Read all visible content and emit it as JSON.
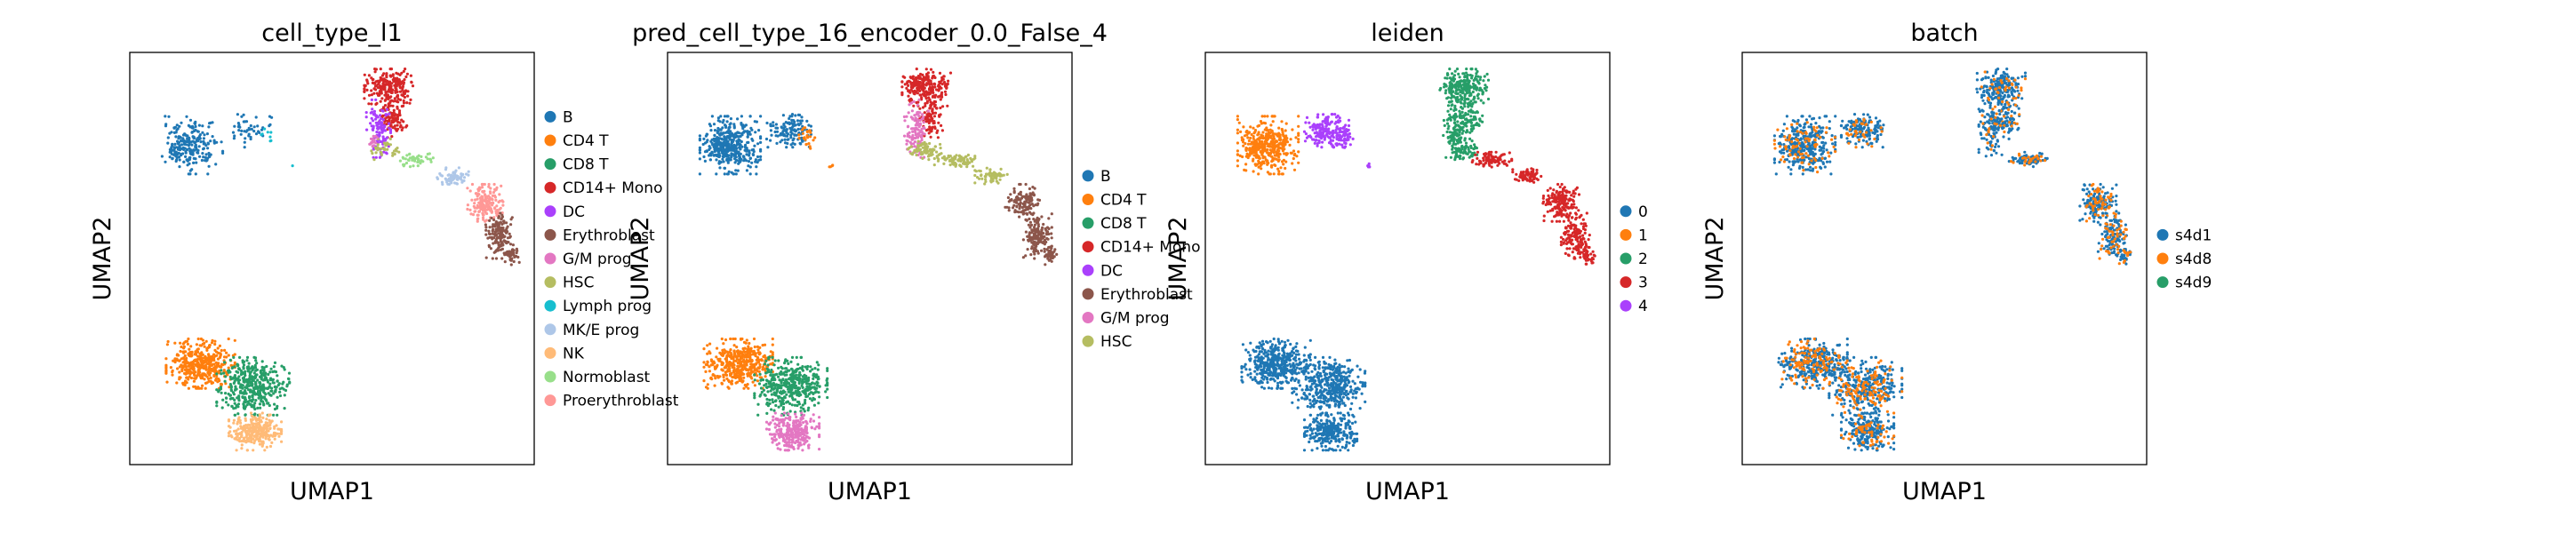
{
  "chart_data": [
    {
      "type": "scatter",
      "title": "cell_type_l1",
      "xlabel": "UMAP1",
      "ylabel": "UMAP2",
      "grid": false,
      "legend": {
        "placement": "right",
        "entries": [
          {
            "label": "B",
            "color": "#1f77b4"
          },
          {
            "label": "CD4 T",
            "color": "#ff7f0e"
          },
          {
            "label": "CD8 T",
            "color": "#279e68"
          },
          {
            "label": "CD14+ Mono",
            "color": "#d62728"
          },
          {
            "label": "DC",
            "color": "#aa40fc"
          },
          {
            "label": "Erythroblast",
            "color": "#8c564b"
          },
          {
            "label": "G/M prog",
            "color": "#e377c2"
          },
          {
            "label": "HSC",
            "color": "#b5bd61"
          },
          {
            "label": "Lymph prog",
            "color": "#17becf"
          },
          {
            "label": "MK/E prog",
            "color": "#aec7e8"
          },
          {
            "label": "NK",
            "color": "#ffbb78"
          },
          {
            "label": "Normoblast",
            "color": "#98df8a"
          },
          {
            "label": "Proerythroblast",
            "color": "#ff9896"
          }
        ]
      },
      "groups": [
        {
          "label": "B",
          "region": "b_left",
          "share": 0.55
        },
        {
          "label": "B",
          "region": "b_right",
          "share": 0.25
        },
        {
          "label": "Lymph prog",
          "region": "b_right_edge",
          "share": 0.2
        },
        {
          "label": "CD14+ Mono",
          "region": "mono_top",
          "share": 1.0
        },
        {
          "label": "DC",
          "region": "dc_stem",
          "share": 1.0
        },
        {
          "label": "HSC",
          "region": "hsc_bridge",
          "share": 0.5
        },
        {
          "label": "Normoblast",
          "region": "bridge",
          "share": 0.5
        },
        {
          "label": "MK/E prog",
          "region": "bridge_right",
          "share": 1.0
        },
        {
          "label": "Proerythroblast",
          "region": "ery_upper",
          "share": 1.0
        },
        {
          "label": "Erythroblast",
          "region": "ery_lower",
          "share": 1.0
        },
        {
          "label": "G/M prog",
          "region": "gm_spot",
          "share": 1.0
        },
        {
          "label": "CD4 T",
          "region": "t_left",
          "share": 1.0
        },
        {
          "label": "CD8 T",
          "region": "t_right",
          "share": 1.0
        },
        {
          "label": "NK",
          "region": "t_bottom",
          "share": 1.0
        }
      ]
    },
    {
      "type": "scatter",
      "title": "pred_cell_type_16_encoder_0.0_False_4",
      "xlabel": "UMAP1",
      "ylabel": "UMAP2",
      "grid": false,
      "legend": {
        "placement": "right",
        "entries": [
          {
            "label": "B",
            "color": "#1f77b4"
          },
          {
            "label": "CD4 T",
            "color": "#ff7f0e"
          },
          {
            "label": "CD8 T",
            "color": "#279e68"
          },
          {
            "label": "CD14+ Mono",
            "color": "#d62728"
          },
          {
            "label": "DC",
            "color": "#aa40fc"
          },
          {
            "label": "Erythroblast",
            "color": "#8c564b"
          },
          {
            "label": "G/M prog",
            "color": "#e377c2"
          },
          {
            "label": "HSC",
            "color": "#b5bd61"
          }
        ]
      },
      "groups": [
        {
          "label": "B",
          "region": "b_left",
          "share": 1.0
        },
        {
          "label": "B",
          "region": "b_right",
          "share": 0.7
        },
        {
          "label": "CD4 T",
          "region": "b_right_edge",
          "share": 0.6
        },
        {
          "label": "CD14+ Mono",
          "region": "mono_top",
          "share": 1.0
        },
        {
          "label": "G/M prog",
          "region": "dc_stem",
          "share": 1.0
        },
        {
          "label": "HSC",
          "region": "hsc_bridge",
          "share": 1.0
        },
        {
          "label": "HSC",
          "region": "bridge",
          "share": 1.0
        },
        {
          "label": "HSC",
          "region": "bridge_right",
          "share": 0.8
        },
        {
          "label": "Erythroblast",
          "region": "ery_upper",
          "share": 0.6
        },
        {
          "label": "Erythroblast",
          "region": "ery_lower",
          "share": 1.0
        },
        {
          "label": "CD4 T",
          "region": "t_left",
          "share": 1.0
        },
        {
          "label": "CD8 T",
          "region": "t_right",
          "share": 1.0
        },
        {
          "label": "G/M prog",
          "region": "t_bottom",
          "share": 1.0
        }
      ]
    },
    {
      "type": "scatter",
      "title": "leiden",
      "xlabel": "UMAP1",
      "ylabel": "UMAP2",
      "grid": false,
      "legend": {
        "placement": "right",
        "entries": [
          {
            "label": "0",
            "color": "#1f77b4"
          },
          {
            "label": "1",
            "color": "#ff7f0e"
          },
          {
            "label": "2",
            "color": "#279e68"
          },
          {
            "label": "3",
            "color": "#d62728"
          },
          {
            "label": "4",
            "color": "#aa40fc"
          }
        ]
      },
      "groups": [
        {
          "label": "1",
          "region": "b_left",
          "share": 1.0
        },
        {
          "label": "4",
          "region": "b_right",
          "share": 1.0
        },
        {
          "label": "4",
          "region": "b_right_edge",
          "share": 1.0
        },
        {
          "label": "2",
          "region": "mono_top",
          "share": 1.0
        },
        {
          "label": "2",
          "region": "dc_stem",
          "share": 1.0
        },
        {
          "label": "2",
          "region": "hsc_bridge",
          "share": 1.0
        },
        {
          "label": "3",
          "region": "bridge",
          "share": 1.0
        },
        {
          "label": "3",
          "region": "bridge_right",
          "share": 1.0
        },
        {
          "label": "3",
          "region": "ery_upper",
          "share": 1.0
        },
        {
          "label": "3",
          "region": "ery_lower",
          "share": 1.0
        },
        {
          "label": "0",
          "region": "t_left",
          "share": 1.0
        },
        {
          "label": "0",
          "region": "t_right",
          "share": 1.0
        },
        {
          "label": "0",
          "region": "t_bottom",
          "share": 1.0
        }
      ]
    },
    {
      "type": "scatter",
      "title": "batch",
      "xlabel": "UMAP1",
      "ylabel": "UMAP2",
      "grid": false,
      "legend": {
        "placement": "right",
        "entries": [
          {
            "label": "s4d1",
            "color": "#1f77b4"
          },
          {
            "label": "s4d8",
            "color": "#ff7f0e"
          },
          {
            "label": "s4d9",
            "color": "#279e68"
          }
        ]
      },
      "groups": [
        {
          "label": "s4d1",
          "region": "b_left",
          "share": 0.8
        },
        {
          "label": "s4d8",
          "region": "b_left",
          "share": 0.2
        },
        {
          "label": "s4d1",
          "region": "b_right",
          "share": 0.8
        },
        {
          "label": "s4d8",
          "region": "b_right",
          "share": 0.2
        },
        {
          "label": "s4d1",
          "region": "mono_top",
          "share": 0.85
        },
        {
          "label": "s4d8",
          "region": "mono_top",
          "share": 0.15
        },
        {
          "label": "s4d1",
          "region": "dc_stem",
          "share": 0.85
        },
        {
          "label": "s4d8",
          "region": "dc_stem",
          "share": 0.15
        },
        {
          "label": "s4d1",
          "region": "bridge",
          "share": 0.7
        },
        {
          "label": "s4d8",
          "region": "bridge",
          "share": 0.3
        },
        {
          "label": "s4d1",
          "region": "ery_upper",
          "share": 0.7
        },
        {
          "label": "s4d8",
          "region": "ery_upper",
          "share": 0.3
        },
        {
          "label": "s4d1",
          "region": "ery_lower",
          "share": 0.7
        },
        {
          "label": "s4d8",
          "region": "ery_lower",
          "share": 0.3
        },
        {
          "label": "s4d1",
          "region": "t_left",
          "share": 0.7
        },
        {
          "label": "s4d8",
          "region": "t_left",
          "share": 0.3
        },
        {
          "label": "s4d1",
          "region": "t_right",
          "share": 0.7
        },
        {
          "label": "s4d8",
          "region": "t_right",
          "share": 0.3
        },
        {
          "label": "s4d1",
          "region": "t_bottom",
          "share": 0.8
        },
        {
          "label": "s4d8",
          "region": "t_bottom",
          "share": 0.2
        }
      ]
    }
  ]
}
